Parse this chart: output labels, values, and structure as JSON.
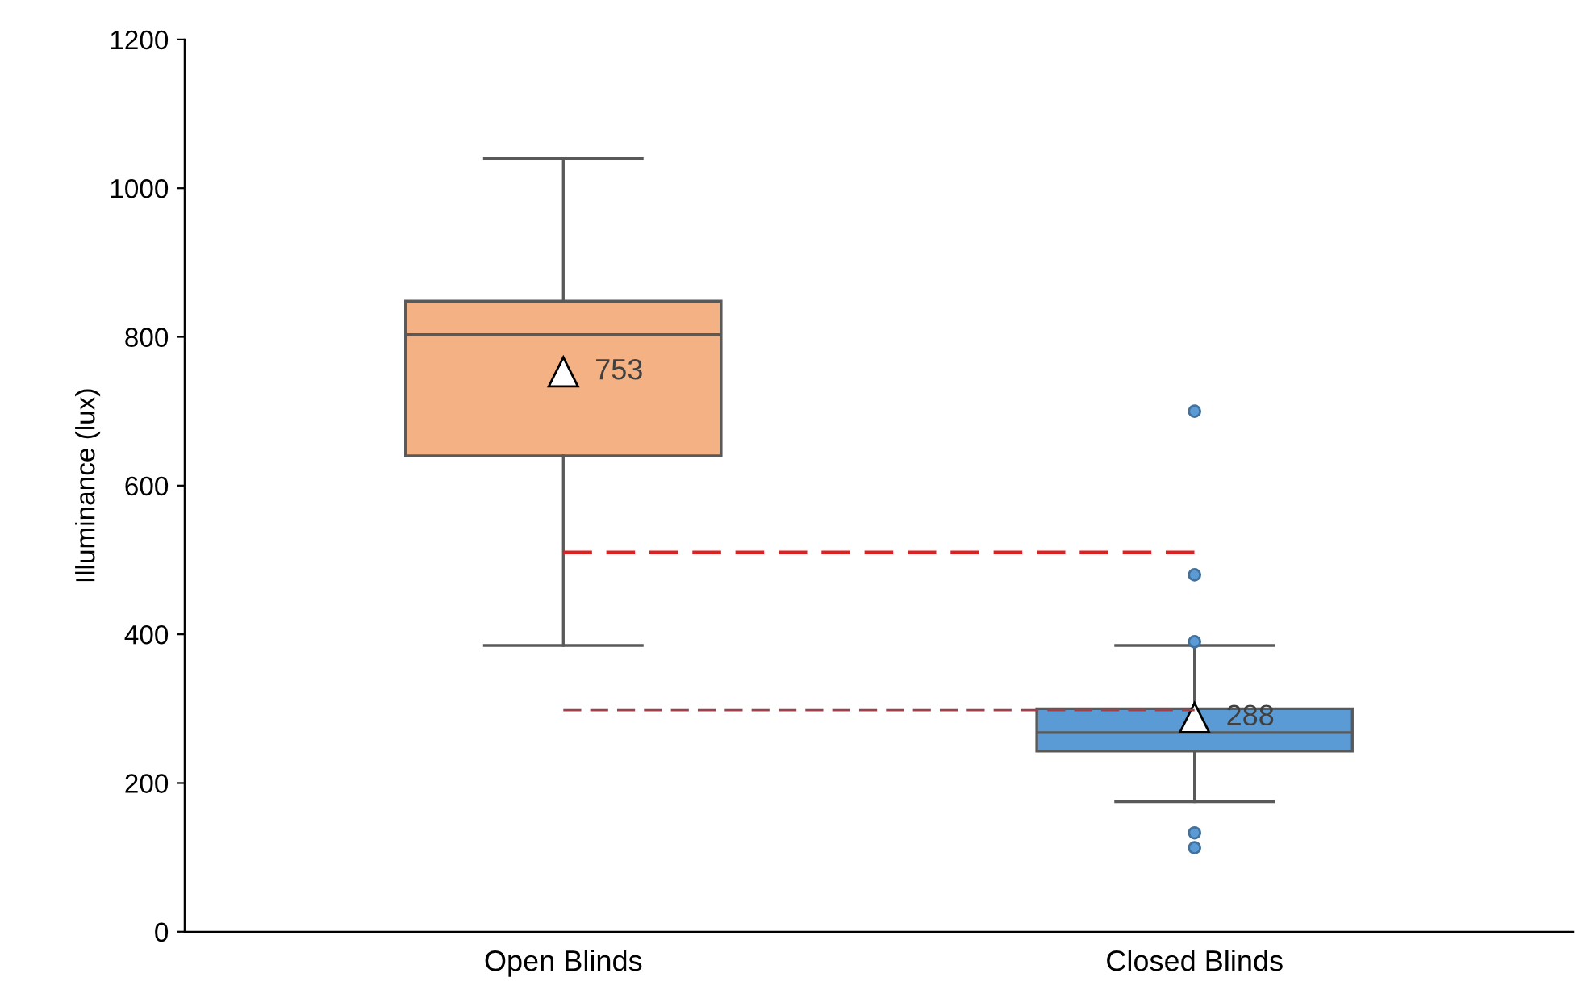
{
  "chart_data": {
    "type": "box",
    "ylabel": "Illuminance (lux)",
    "categories": [
      "Open Blinds",
      "Closed Blinds"
    ],
    "colors": [
      "#f4b183",
      "#5b9bd5"
    ],
    "boxes": [
      {
        "low": 385,
        "q1": 640,
        "median": 803,
        "q3": 848,
        "high": 1040,
        "mean": 753
      },
      {
        "low": 175,
        "q1": 243,
        "median": 268,
        "q3": 300,
        "high": 385,
        "mean": 288,
        "outliers": [
          700,
          480,
          390,
          133,
          113
        ]
      }
    ],
    "ylim": [
      0,
      1200
    ],
    "yticks": [
      0,
      200,
      400,
      600,
      800,
      1000,
      1200
    ],
    "ref_lines": [
      {
        "axis": "y",
        "value": 510,
        "color": "#e02020",
        "line_style": "dashed"
      },
      {
        "axis": "y",
        "value": 298,
        "color": "#a0404a",
        "line_style": "dashed"
      }
    ],
    "annotations": [
      "753",
      "288"
    ],
    "grid": false,
    "legend": false
  }
}
